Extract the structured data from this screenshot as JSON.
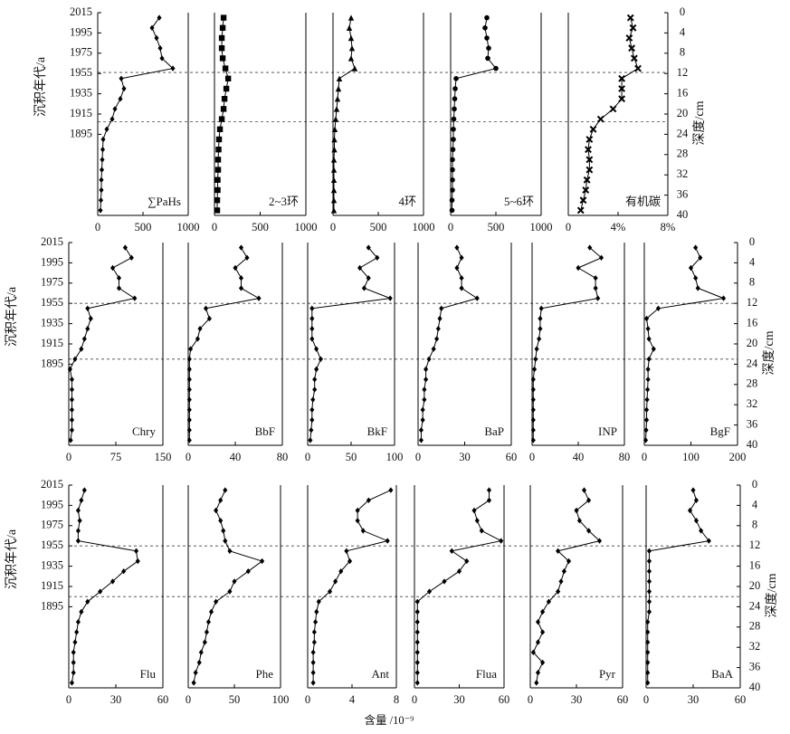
{
  "chart_data": {
    "type": "panel-grid",
    "age_axis": {
      "label": "沉积年代/a",
      "lim": [
        2015,
        1815
      ],
      "ticks": [
        2015,
        1995,
        1975,
        1955,
        1935,
        1915,
        1895
      ]
    },
    "depth_axis": {
      "label": "深度/cm",
      "lim": [
        0,
        40
      ],
      "ticks": [
        0,
        4,
        8,
        12,
        16,
        20,
        24,
        28,
        32,
        36,
        40
      ]
    },
    "x_label": "含量 /10⁻⁹",
    "depth": [
      1,
      3,
      5,
      7,
      9,
      11,
      13,
      15,
      17,
      19,
      21,
      23,
      25,
      27,
      29,
      31,
      33,
      35,
      37,
      39
    ],
    "rows": [
      {
        "ref_depths": [
          11.8,
          21.5
        ],
        "panels": [
          {
            "type": "line",
            "label": "∑PaHs",
            "marker": "diamond",
            "xlim": [
              0,
              1000
            ],
            "xticks": [
              0,
              500,
              1000
            ],
            "values": [
              680,
              600,
              650,
              690,
              710,
              830,
              260,
              290,
              250,
              190,
              160,
              100,
              60,
              55,
              50,
              45,
              40,
              40,
              35,
              30
            ]
          },
          {
            "type": "line",
            "label": "2~3环",
            "marker": "square",
            "xlim": [
              0,
              1000
            ],
            "xticks": [
              0,
              500,
              1000
            ],
            "values": [
              100,
              90,
              80,
              80,
              90,
              120,
              150,
              130,
              110,
              100,
              80,
              60,
              50,
              45,
              40,
              40,
              35,
              35,
              30,
              30
            ]
          },
          {
            "type": "line",
            "label": "4环",
            "marker": "triangle",
            "xlim": [
              0,
              1000
            ],
            "xticks": [
              0,
              500,
              1000
            ],
            "values": [
              200,
              180,
              200,
              210,
              200,
              240,
              70,
              60,
              50,
              40,
              30,
              20,
              15,
              15,
              10,
              10,
              10,
              10,
              10,
              10
            ]
          },
          {
            "type": "line",
            "label": "5~6环",
            "marker": "circle",
            "xlim": [
              0,
              1000
            ],
            "xticks": [
              0,
              500,
              1000
            ],
            "values": [
              400,
              380,
              400,
              420,
              410,
              500,
              60,
              50,
              45,
              40,
              35,
              30,
              30,
              25,
              20,
              20,
              20,
              20,
              15,
              15
            ]
          },
          {
            "type": "line",
            "label": "有机碳",
            "marker": "cross",
            "xlim": [
              0,
              8
            ],
            "xticks": [
              0,
              {
                "value": 4,
                "label": "4%"
              },
              {
                "value": 8,
                "label": "8%"
              }
            ],
            "values": [
              5.0,
              5.2,
              4.9,
              5.1,
              5.3,
              5.6,
              4.3,
              4.3,
              4.3,
              3.6,
              2.6,
              2.0,
              1.7,
              1.6,
              1.7,
              1.7,
              1.5,
              1.4,
              1.2,
              1.0
            ]
          }
        ]
      },
      {
        "ref_depths": [
          12,
          23
        ],
        "panels": [
          {
            "type": "line",
            "label": "Chry",
            "marker": "diamond",
            "xlim": [
              0,
              150
            ],
            "xticks": [
              0,
              75,
              150
            ],
            "values": [
              90,
              100,
              70,
              80,
              80,
              105,
              30,
              35,
              30,
              25,
              20,
              10,
              2,
              5,
              5,
              5,
              5,
              5,
              5,
              3
            ]
          },
          {
            "type": "line",
            "label": "BbF",
            "marker": "diamond",
            "xlim": [
              0,
              80
            ],
            "xticks": [
              0,
              40,
              80
            ],
            "values": [
              45,
              50,
              40,
              45,
              45,
              60,
              15,
              18,
              10,
              8,
              2,
              1,
              1,
              1,
              1,
              1,
              1,
              1,
              1,
              1
            ]
          },
          {
            "type": "line",
            "label": "BkF",
            "marker": "diamond",
            "xlim": [
              0,
              100
            ],
            "xticks": [
              0,
              50,
              100
            ],
            "values": [
              70,
              80,
              60,
              70,
              65,
              95,
              5,
              5,
              5,
              5,
              10,
              15,
              10,
              8,
              8,
              6,
              5,
              5,
              4,
              3
            ]
          },
          {
            "type": "line",
            "label": "BaP",
            "marker": "diamond",
            "xlim": [
              0,
              60
            ],
            "xticks": [
              0,
              30,
              60
            ],
            "values": [
              25,
              28,
              25,
              28,
              28,
              38,
              15,
              14,
              13,
              12,
              10,
              7,
              5,
              5,
              4,
              4,
              3,
              3,
              2,
              2
            ]
          },
          {
            "type": "line",
            "label": "INP",
            "marker": "diamond",
            "xlim": [
              0,
              80
            ],
            "xticks": [
              0,
              40,
              80
            ],
            "values": [
              50,
              60,
              40,
              55,
              55,
              57,
              8,
              7,
              7,
              6,
              4,
              3,
              2,
              1,
              1,
              1,
              1,
              1,
              1,
              1
            ]
          },
          {
            "type": "line",
            "label": "BgF",
            "marker": "diamond",
            "xlim": [
              0,
              200
            ],
            "xticks": [
              0,
              100,
              200
            ],
            "values": [
              110,
              120,
              100,
              110,
              115,
              170,
              30,
              5,
              8,
              10,
              20,
              10,
              8,
              8,
              7,
              6,
              5,
              5,
              4,
              3
            ]
          }
        ]
      },
      {
        "ref_depths": [
          12,
          22
        ],
        "panels": [
          {
            "type": "line",
            "label": "Flu",
            "marker": "diamond",
            "xlim": [
              0,
              60
            ],
            "xticks": [
              0,
              30,
              60
            ],
            "values": [
              10,
              8,
              6,
              7,
              6,
              6,
              43,
              44,
              35,
              28,
              20,
              12,
              8,
              6,
              5,
              4,
              3,
              3,
              3,
              2
            ]
          },
          {
            "type": "line",
            "label": "Phe",
            "marker": "diamond",
            "xlim": [
              0,
              100
            ],
            "xticks": [
              0,
              50,
              100
            ],
            "values": [
              40,
              35,
              30,
              35,
              38,
              40,
              45,
              80,
              65,
              50,
              45,
              30,
              25,
              22,
              20,
              18,
              14,
              12,
              8,
              6
            ]
          },
          {
            "type": "line",
            "label": "Ant",
            "marker": "diamond",
            "xlim": [
              0,
              8
            ],
            "xticks": [
              0,
              4,
              8
            ],
            "values": [
              7.5,
              5.5,
              4.5,
              4.5,
              5.0,
              7.2,
              3.5,
              3.8,
              3.0,
              2.5,
              2.0,
              1.0,
              0.8,
              0.7,
              0.6,
              0.6,
              0.5,
              0.5,
              0.5,
              0.5
            ]
          },
          {
            "type": "line",
            "label": "Flua",
            "marker": "diamond",
            "xlim": [
              0,
              60
            ],
            "xticks": [
              0,
              30,
              60
            ],
            "values": [
              50,
              50,
              40,
              42,
              45,
              58,
              25,
              35,
              30,
              20,
              10,
              2,
              2,
              2,
              2,
              2,
              2,
              2,
              2,
              2
            ]
          },
          {
            "type": "line",
            "label": "Pyr",
            "marker": "diamond",
            "xlim": [
              0,
              60
            ],
            "xticks": [
              0,
              30,
              60
            ],
            "values": [
              35,
              38,
              30,
              32,
              38,
              45,
              18,
              25,
              22,
              20,
              18,
              12,
              8,
              5,
              8,
              5,
              2,
              8,
              5,
              4
            ]
          },
          {
            "type": "line",
            "label": "BaA",
            "marker": "diamond",
            "xlim": [
              0,
              60
            ],
            "xticks": [
              0,
              30,
              60
            ],
            "values": [
              30,
              32,
              28,
              32,
              35,
              40,
              2,
              2,
              2,
              2,
              2,
              2,
              2,
              1,
              1,
              1,
              1,
              1,
              1,
              1
            ]
          }
        ]
      }
    ]
  }
}
